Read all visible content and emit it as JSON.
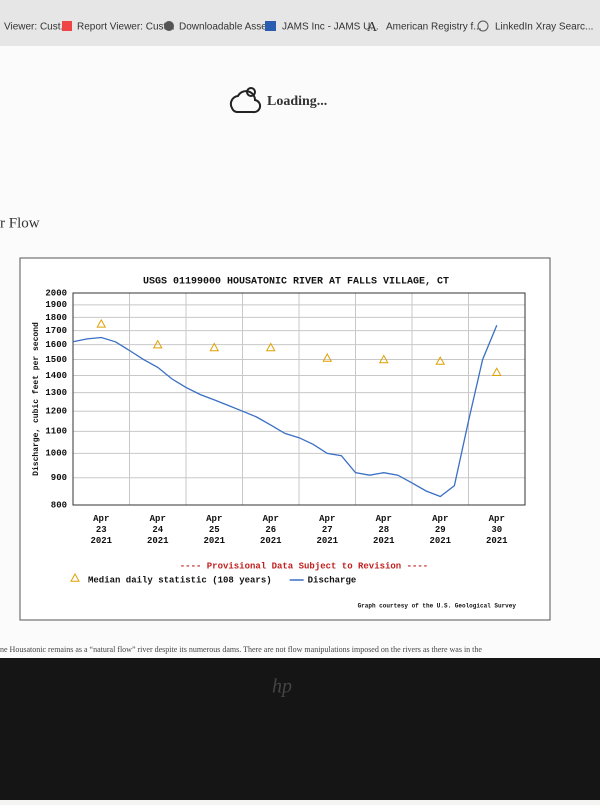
{
  "bookmarks": [
    "Viewer: Cust...",
    "Report Viewer: Cust...",
    "Downloadable Assets",
    "JAMS Inc - JAMS U...",
    "American Registry f...",
    "LinkedIn Xray Searc..."
  ],
  "loading": "Loading...",
  "heading": "r Flow",
  "body_text": "ne Housatonic remains as a “natural flow” river despite its numerous dams. There are not flow manipulations imposed on the rivers as there was in the",
  "bezel_logo": "hp",
  "chart_data": {
    "type": "line",
    "title": "USGS 01199000 HOUSATONIC RIVER AT FALLS VILLAGE, CT",
    "y_label": "Discharge, cubic feet per second",
    "notice": "---- Provisional Data Subject to Revision ----",
    "credit": "Graph courtesy of the U.S. Geological Survey",
    "log_y": true,
    "grid": true,
    "xlim": [
      "2021-04-23",
      "2021-05-01"
    ],
    "xticks": [
      {
        "value": "2021-04-23",
        "label": "Apr 23 2021"
      },
      {
        "value": "2021-04-24",
        "label": "Apr 24 2021"
      },
      {
        "value": "2021-04-25",
        "label": "Apr 25 2021"
      },
      {
        "value": "2021-04-26",
        "label": "Apr 26 2021"
      },
      {
        "value": "2021-04-27",
        "label": "Apr 27 2021"
      },
      {
        "value": "2021-04-28",
        "label": "Apr 28 2021"
      },
      {
        "value": "2021-04-29",
        "label": "Apr 29 2021"
      },
      {
        "value": "2021-04-30",
        "label": "Apr 30 2021"
      }
    ],
    "ylim": [
      800,
      2000
    ],
    "yticks": [
      800,
      900,
      1000,
      1100,
      1200,
      1300,
      1400,
      1500,
      1600,
      1700,
      1800,
      1900,
      2000
    ],
    "series": [
      {
        "name": "Median daily statistic (108 years)",
        "color": "#e0a000",
        "marker": "triangle",
        "x": [
          "2021-04-23T12:00",
          "2021-04-24T12:00",
          "2021-04-25T12:00",
          "2021-04-26T12:00",
          "2021-04-27T12:00",
          "2021-04-28T12:00",
          "2021-04-29T12:00",
          "2021-04-30T12:00"
        ],
        "values": [
          1750,
          1600,
          1580,
          1580,
          1510,
          1500,
          1490,
          1420
        ]
      },
      {
        "name": "Discharge",
        "color": "#3a6fc4",
        "marker": "line",
        "x": [
          "2021-04-23T00:00",
          "2021-04-23T06:00",
          "2021-04-23T12:00",
          "2021-04-23T18:00",
          "2021-04-24T00:00",
          "2021-04-24T06:00",
          "2021-04-24T12:00",
          "2021-04-24T18:00",
          "2021-04-25T00:00",
          "2021-04-25T06:00",
          "2021-04-25T12:00",
          "2021-04-25T18:00",
          "2021-04-26T00:00",
          "2021-04-26T06:00",
          "2021-04-26T12:00",
          "2021-04-26T18:00",
          "2021-04-27T00:00",
          "2021-04-27T06:00",
          "2021-04-27T12:00",
          "2021-04-27T18:00",
          "2021-04-28T00:00",
          "2021-04-28T06:00",
          "2021-04-28T12:00",
          "2021-04-28T18:00",
          "2021-04-29T00:00",
          "2021-04-29T06:00",
          "2021-04-29T12:00",
          "2021-04-29T18:00",
          "2021-04-30T00:00",
          "2021-04-30T06:00",
          "2021-04-30T12:00"
        ],
        "values": [
          1620,
          1640,
          1650,
          1620,
          1560,
          1500,
          1450,
          1380,
          1330,
          1290,
          1260,
          1230,
          1200,
          1170,
          1130,
          1090,
          1070,
          1040,
          1000,
          990,
          920,
          910,
          920,
          910,
          880,
          850,
          830,
          870,
          1150,
          1500,
          1740
        ]
      }
    ]
  }
}
